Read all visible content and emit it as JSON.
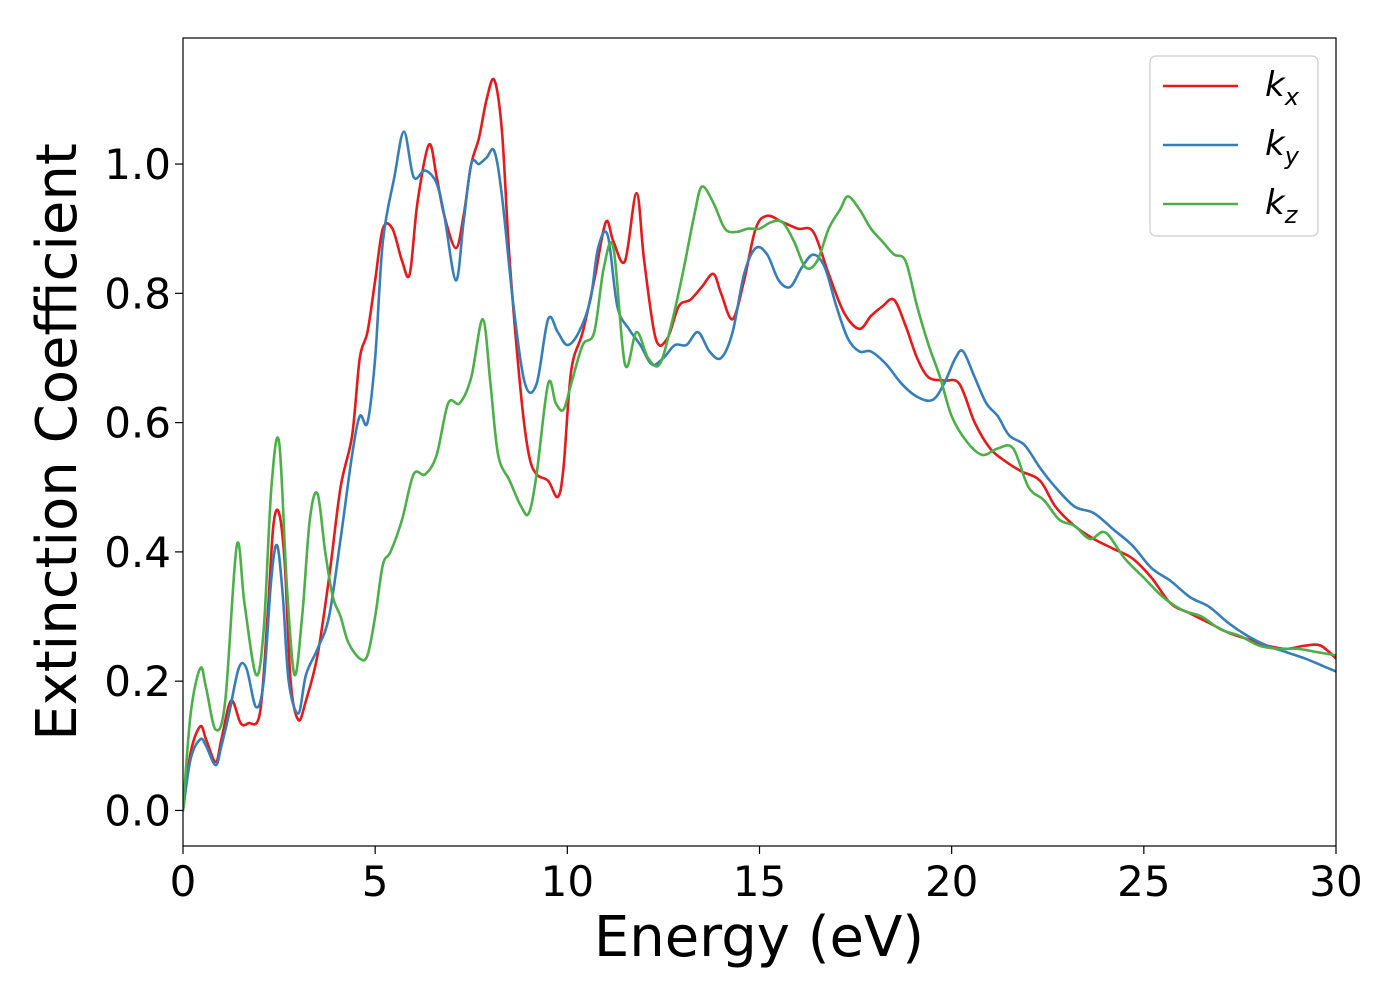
{
  "chart_data": {
    "type": "line",
    "title": "",
    "xlabel": "Energy (eV)",
    "ylabel": "Extinction Coefficient",
    "xlim": [
      0,
      30
    ],
    "ylim": [
      -0.055,
      1.195
    ],
    "xticks": [
      0,
      5,
      10,
      15,
      20,
      25,
      30
    ],
    "xtick_labels": [
      "0",
      "5",
      "10",
      "15",
      "20",
      "25",
      "30"
    ],
    "yticks": [
      0.0,
      0.2,
      0.4,
      0.6,
      0.8,
      1.0
    ],
    "ytick_labels": [
      "0.0",
      "0.2",
      "0.4",
      "0.6",
      "0.8",
      "1.0"
    ],
    "grid": false,
    "legend_position": "top-right",
    "series": [
      {
        "name": "k_x",
        "legend_main": "k",
        "legend_sub": "x",
        "color": "#e41a1c",
        "x": [
          0,
          0.2,
          0.45,
          0.6,
          0.85,
          1.0,
          1.25,
          1.5,
          1.7,
          2.0,
          2.2,
          2.35,
          2.5,
          2.65,
          2.8,
          3.0,
          3.2,
          3.5,
          3.8,
          4.1,
          4.4,
          4.6,
          4.8,
          5.0,
          5.2,
          5.45,
          5.7,
          5.9,
          6.1,
          6.4,
          6.6,
          6.8,
          7.1,
          7.3,
          7.5,
          7.7,
          7.9,
          8.1,
          8.3,
          8.5,
          8.8,
          9.0,
          9.2,
          9.5,
          9.75,
          9.9,
          10.1,
          10.4,
          10.7,
          11.0,
          11.2,
          11.5,
          11.8,
          12.0,
          12.3,
          12.6,
          12.9,
          13.2,
          13.5,
          13.8,
          14.0,
          14.3,
          14.6,
          14.9,
          15.2,
          15.6,
          16.0,
          16.4,
          16.8,
          17.2,
          17.6,
          17.9,
          18.2,
          18.5,
          18.8,
          19.1,
          19.4,
          19.8,
          20.2,
          20.6,
          21.0,
          21.4,
          21.8,
          22.3,
          22.7,
          23.2,
          23.7,
          24.2,
          24.7,
          25.2,
          25.7,
          26.2,
          26.7,
          27.2,
          27.7,
          28.2,
          28.7,
          29.2,
          29.6,
          30.0
        ],
        "values": [
          0.0,
          0.09,
          0.13,
          0.11,
          0.075,
          0.11,
          0.17,
          0.135,
          0.135,
          0.15,
          0.3,
          0.44,
          0.46,
          0.38,
          0.2,
          0.14,
          0.17,
          0.24,
          0.36,
          0.5,
          0.58,
          0.7,
          0.74,
          0.82,
          0.9,
          0.9,
          0.85,
          0.83,
          0.94,
          1.03,
          0.98,
          0.92,
          0.87,
          0.92,
          1.0,
          1.04,
          1.1,
          1.13,
          1.05,
          0.85,
          0.64,
          0.55,
          0.52,
          0.51,
          0.485,
          0.53,
          0.68,
          0.74,
          0.82,
          0.91,
          0.88,
          0.85,
          0.955,
          0.85,
          0.73,
          0.73,
          0.78,
          0.79,
          0.81,
          0.83,
          0.8,
          0.76,
          0.82,
          0.9,
          0.92,
          0.91,
          0.9,
          0.895,
          0.83,
          0.77,
          0.745,
          0.765,
          0.78,
          0.79,
          0.75,
          0.7,
          0.67,
          0.665,
          0.66,
          0.6,
          0.56,
          0.54,
          0.525,
          0.51,
          0.47,
          0.44,
          0.42,
          0.405,
          0.39,
          0.36,
          0.32,
          0.305,
          0.29,
          0.275,
          0.265,
          0.255,
          0.25,
          0.255,
          0.255,
          0.235
        ]
      },
      {
        "name": "k_y",
        "legend_main": "k",
        "legend_sub": "y",
        "color": "#377eb8",
        "x": [
          0,
          0.2,
          0.45,
          0.6,
          0.85,
          1.0,
          1.2,
          1.45,
          1.65,
          1.9,
          2.1,
          2.3,
          2.45,
          2.6,
          2.75,
          3.0,
          3.2,
          3.5,
          3.8,
          4.1,
          4.4,
          4.6,
          4.8,
          5.0,
          5.2,
          5.5,
          5.75,
          6.0,
          6.3,
          6.6,
          6.8,
          7.1,
          7.3,
          7.5,
          7.7,
          7.9,
          8.1,
          8.3,
          8.6,
          8.9,
          9.2,
          9.5,
          9.75,
          10.0,
          10.3,
          10.6,
          10.8,
          11.05,
          11.3,
          11.6,
          11.9,
          12.2,
          12.5,
          12.8,
          13.1,
          13.4,
          13.7,
          14.0,
          14.3,
          14.6,
          14.9,
          15.2,
          15.5,
          15.8,
          16.1,
          16.4,
          16.7,
          17.0,
          17.3,
          17.6,
          17.9,
          18.3,
          18.7,
          19.1,
          19.5,
          19.8,
          20.1,
          20.3,
          20.6,
          20.9,
          21.2,
          21.5,
          21.9,
          22.3,
          22.7,
          23.2,
          23.7,
          24.2,
          24.7,
          25.2,
          25.7,
          26.2,
          26.7,
          27.2,
          27.7,
          28.2,
          28.7,
          29.2,
          29.6,
          30.0
        ],
        "values": [
          0.0,
          0.08,
          0.11,
          0.1,
          0.07,
          0.1,
          0.15,
          0.22,
          0.22,
          0.16,
          0.2,
          0.36,
          0.41,
          0.33,
          0.2,
          0.15,
          0.21,
          0.25,
          0.3,
          0.42,
          0.55,
          0.61,
          0.6,
          0.7,
          0.88,
          0.98,
          1.05,
          0.98,
          0.99,
          0.97,
          0.92,
          0.82,
          0.91,
          1.0,
          1.0,
          1.01,
          1.02,
          0.95,
          0.78,
          0.66,
          0.66,
          0.76,
          0.74,
          0.72,
          0.74,
          0.79,
          0.87,
          0.89,
          0.78,
          0.745,
          0.72,
          0.69,
          0.7,
          0.72,
          0.72,
          0.74,
          0.71,
          0.7,
          0.74,
          0.83,
          0.87,
          0.86,
          0.82,
          0.81,
          0.84,
          0.86,
          0.84,
          0.78,
          0.73,
          0.71,
          0.71,
          0.69,
          0.66,
          0.64,
          0.635,
          0.66,
          0.7,
          0.71,
          0.67,
          0.63,
          0.61,
          0.58,
          0.565,
          0.53,
          0.5,
          0.47,
          0.46,
          0.435,
          0.41,
          0.375,
          0.355,
          0.33,
          0.315,
          0.29,
          0.27,
          0.255,
          0.245,
          0.235,
          0.225,
          0.215
        ]
      },
      {
        "name": "k_z",
        "legend_main": "k",
        "legend_sub": "z",
        "color": "#4daf4a",
        "x": [
          0,
          0.2,
          0.45,
          0.6,
          0.85,
          1.1,
          1.4,
          1.6,
          1.9,
          2.1,
          2.3,
          2.5,
          2.7,
          2.9,
          3.1,
          3.3,
          3.5,
          3.7,
          3.9,
          4.1,
          4.3,
          4.6,
          4.8,
          5.0,
          5.2,
          5.4,
          5.7,
          6.0,
          6.3,
          6.6,
          6.9,
          7.2,
          7.5,
          7.8,
          8.0,
          8.2,
          8.5,
          8.8,
          9.0,
          9.2,
          9.5,
          9.7,
          9.9,
          10.1,
          10.4,
          10.7,
          10.95,
          11.2,
          11.5,
          11.8,
          12.1,
          12.4,
          12.7,
          13.0,
          13.3,
          13.5,
          13.8,
          14.1,
          14.4,
          14.7,
          15.0,
          15.3,
          15.6,
          15.9,
          16.2,
          16.5,
          16.8,
          17.1,
          17.3,
          17.6,
          17.9,
          18.2,
          18.5,
          18.8,
          19.1,
          19.4,
          19.7,
          20.0,
          20.4,
          20.8,
          21.2,
          21.6,
          22.0,
          22.4,
          22.8,
          23.2,
          23.6,
          24.0,
          24.5,
          25.0,
          25.5,
          26.0,
          26.5,
          27.0,
          27.5,
          28.0,
          28.5,
          29.0,
          29.5,
          30.0
        ],
        "values": [
          0.0,
          0.15,
          0.22,
          0.19,
          0.125,
          0.17,
          0.41,
          0.32,
          0.21,
          0.28,
          0.5,
          0.57,
          0.35,
          0.21,
          0.3,
          0.45,
          0.49,
          0.4,
          0.33,
          0.3,
          0.26,
          0.235,
          0.24,
          0.3,
          0.38,
          0.4,
          0.45,
          0.52,
          0.52,
          0.55,
          0.63,
          0.63,
          0.67,
          0.76,
          0.66,
          0.55,
          0.51,
          0.47,
          0.46,
          0.52,
          0.66,
          0.63,
          0.62,
          0.66,
          0.72,
          0.74,
          0.84,
          0.87,
          0.69,
          0.74,
          0.7,
          0.69,
          0.75,
          0.83,
          0.92,
          0.965,
          0.94,
          0.9,
          0.895,
          0.9,
          0.9,
          0.91,
          0.91,
          0.88,
          0.84,
          0.85,
          0.9,
          0.93,
          0.95,
          0.93,
          0.9,
          0.88,
          0.86,
          0.85,
          0.78,
          0.72,
          0.67,
          0.61,
          0.57,
          0.55,
          0.56,
          0.56,
          0.5,
          0.48,
          0.45,
          0.44,
          0.42,
          0.43,
          0.39,
          0.36,
          0.33,
          0.31,
          0.3,
          0.28,
          0.27,
          0.255,
          0.25,
          0.25,
          0.245,
          0.24
        ]
      }
    ]
  }
}
